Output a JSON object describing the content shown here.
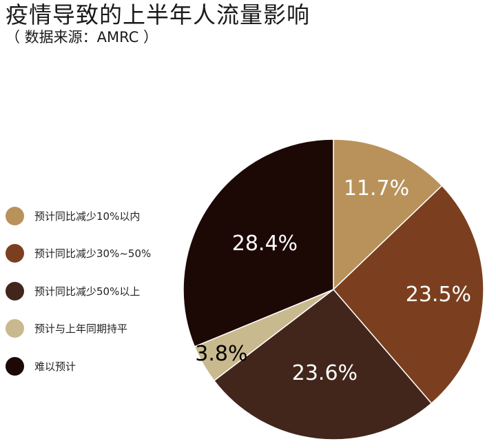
{
  "title": "疫情导致的上半年人流量影响",
  "subtitle": "（ 数据来源：AMRC ）",
  "chart_data": {
    "type": "pie",
    "slices": [
      {
        "name": "预计同比减少10%以内",
        "value": 11.7,
        "label": "11.7%",
        "color": "#B8925A",
        "label_color": "#FFFFFF"
      },
      {
        "name": "预计同比减少30%~50%",
        "value": 23.5,
        "label": "23.5%",
        "color": "#7B3F1F",
        "label_color": "#FFFFFF"
      },
      {
        "name": "预计同比减少50%以上",
        "value": 23.6,
        "label": "23.6%",
        "color": "#42261C",
        "label_color": "#FFFFFF"
      },
      {
        "name": "预计与上年同期持平",
        "value": 3.8,
        "label": "3.8%",
        "color": "#C9B98E",
        "label_color": "#000000"
      },
      {
        "name": "难以预计",
        "value": 28.4,
        "label": "28.4%",
        "color": "#1C0906",
        "label_color": "#FFFFFF"
      }
    ],
    "start_angle": "12 o'clock",
    "direction": "clockwise",
    "legend_position": "left"
  }
}
